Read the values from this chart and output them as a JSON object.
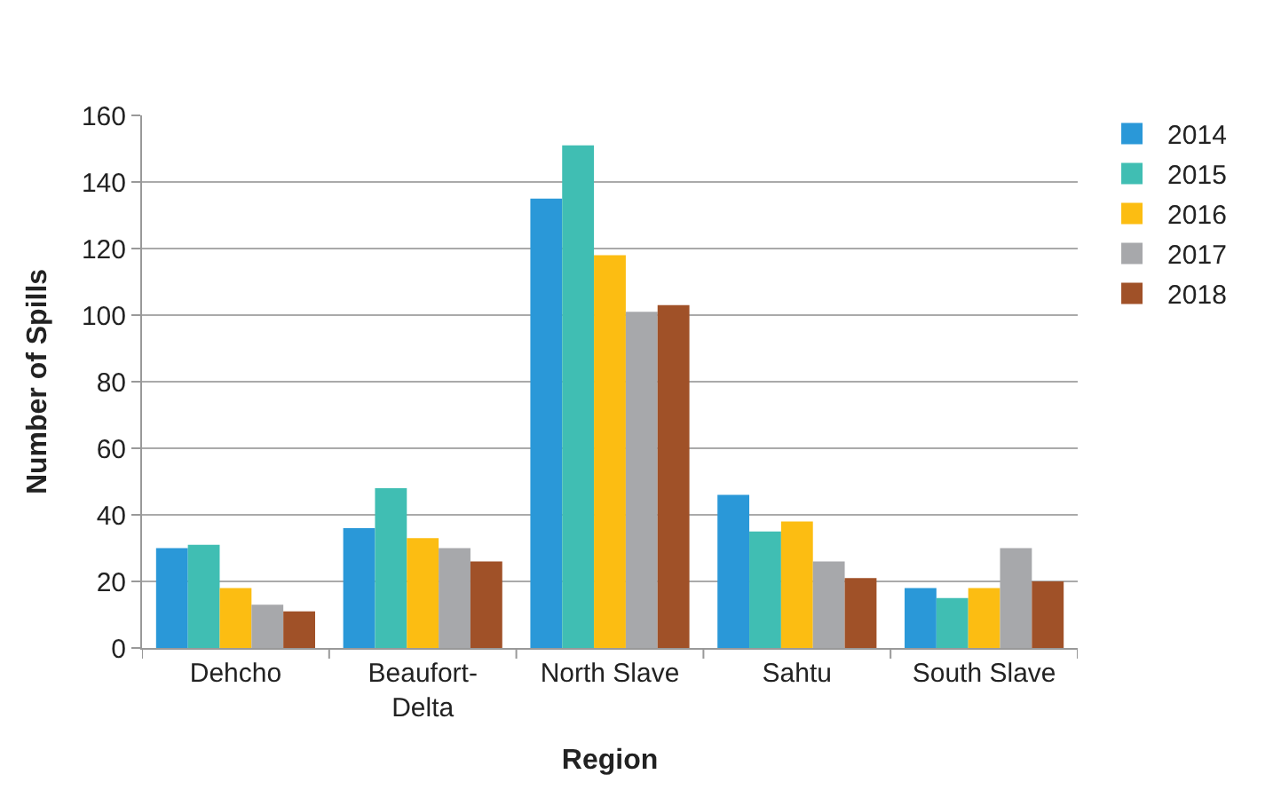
{
  "chart_data": {
    "type": "bar",
    "xlabel": "Region",
    "ylabel": "Number of Spills",
    "categories": [
      "Dehcho",
      "Beaufort-\nDelta",
      "North Slave",
      "Sahtu",
      "South Slave"
    ],
    "series": [
      {
        "name": "2014",
        "color": "#2a98d8",
        "values": [
          30,
          36,
          135,
          46,
          18
        ]
      },
      {
        "name": "2015",
        "color": "#40beb3",
        "values": [
          31,
          48,
          151,
          35,
          15
        ]
      },
      {
        "name": "2016",
        "color": "#fcbd12",
        "values": [
          18,
          33,
          118,
          38,
          18
        ]
      },
      {
        "name": "2017",
        "color": "#a7a8ab",
        "values": [
          13,
          30,
          101,
          26,
          30
        ]
      },
      {
        "name": "2018",
        "color": "#a05128",
        "values": [
          11,
          26,
          103,
          21,
          20
        ]
      }
    ],
    "ylim": [
      0,
      160
    ],
    "yticks": [
      0,
      20,
      40,
      60,
      80,
      100,
      120,
      140,
      160
    ],
    "grid": "y",
    "legend": "right"
  }
}
